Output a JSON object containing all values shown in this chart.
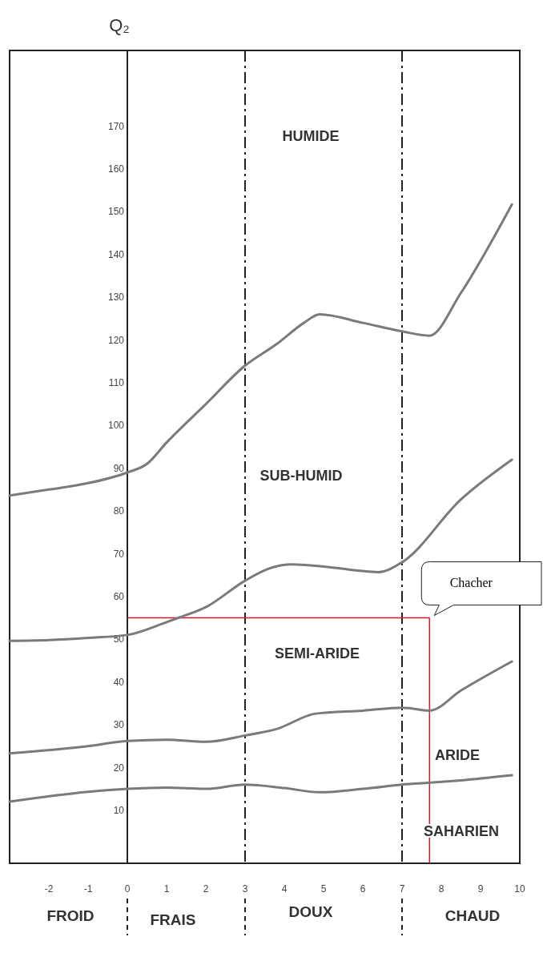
{
  "chart_data": {
    "type": "line",
    "ylabel": "Q₂",
    "xlim": [
      -3,
      10
    ],
    "ylim": [
      -2.4,
      187.7
    ],
    "xticks": [
      -2,
      -1,
      0,
      1,
      2,
      3,
      4,
      5,
      6,
      7,
      8,
      9,
      10
    ],
    "yticks": [
      10,
      20,
      30,
      40,
      50,
      60,
      70,
      80,
      90,
      100,
      110,
      120,
      130,
      140,
      150,
      160,
      170
    ],
    "grid": false,
    "series": [
      {
        "color": "#7a7a7a",
        "x": [
          -3,
          -2,
          -1,
          0,
          0.5,
          1,
          2,
          3,
          3.8,
          4.5,
          4.9,
          6,
          7,
          7.7,
          8.5,
          9.8
        ],
        "values": [
          83.6,
          85,
          86.5,
          89,
          91,
          96,
          105,
          114,
          119,
          124,
          126,
          124,
          122,
          121,
          131,
          151.7
        ]
      },
      {
        "color": "#7a7a7a",
        "x": [
          -3,
          -2,
          -1,
          0,
          1,
          1.3,
          2,
          3,
          3.6,
          4.2,
          5,
          6.4,
          7,
          8.5,
          9.8
        ],
        "values": [
          49.6,
          49.8,
          50.3,
          51,
          54,
          55,
          57.5,
          63.7,
          66.5,
          67.5,
          67,
          65.7,
          68,
          82.7,
          92
        ]
      },
      {
        "color": "#7a7a7a",
        "x": [
          -3,
          -1,
          0,
          1,
          2,
          3,
          3.8,
          4.8,
          6,
          7,
          7.7,
          8.5,
          9.8
        ],
        "values": [
          23.3,
          25,
          26.2,
          26.5,
          26,
          27.5,
          29,
          32.6,
          33.3,
          34,
          33.3,
          38,
          44.8
        ]
      },
      {
        "color": "#7a7a7a",
        "x": [
          -3,
          -1,
          0,
          1,
          2,
          3,
          4,
          4.9,
          6,
          7,
          8.5,
          9.8
        ],
        "values": [
          12,
          14.3,
          15,
          15.3,
          15,
          16,
          15.2,
          14.2,
          15,
          16,
          17,
          18.2
        ]
      }
    ],
    "ref_lines": [
      {
        "axis": "x",
        "value": 3,
        "line_style": "dashed",
        "color": "#222222"
      },
      {
        "axis": "x",
        "value": 7,
        "line_style": "dashed",
        "color": "#222222"
      },
      {
        "axis": "y",
        "value": 55,
        "line_style": "solid",
        "color": "#d0192b"
      },
      {
        "axis": "x",
        "value": 7.7,
        "line_style": "solid",
        "color": "#d0192b"
      }
    ],
    "annotations": [
      "HUMIDE",
      "SUB-HUMID",
      "SEMI-ARIDE",
      "ARIDE",
      "SAHARIEN",
      "FROID",
      "FRAIS",
      "DOUX",
      "CHAUD",
      {
        "text": "Chacher",
        "x": 7.7,
        "y": 55
      }
    ]
  }
}
